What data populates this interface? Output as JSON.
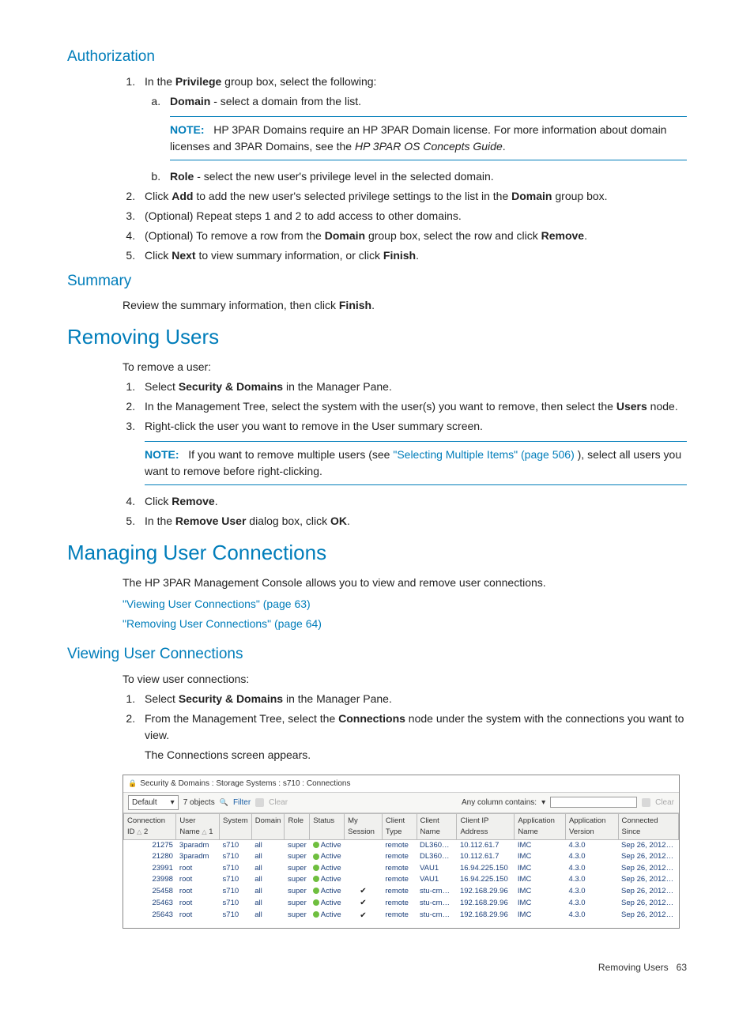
{
  "authorization": {
    "heading": "Authorization",
    "intro": "In the ",
    "intro_bold": "Privilege",
    "intro_after": " group box, select the following:",
    "domain_label": "Domain",
    "domain_text": " - select a domain from the list.",
    "note_label": "NOTE:",
    "note_text": "HP 3PAR Domains require an HP 3PAR Domain license. For more information about domain licenses and 3PAR Domains, see the ",
    "note_italic": "HP 3PAR OS Concepts Guide",
    "role_label": "Role",
    "role_text": " - select the new user's privilege level in the selected domain.",
    "step2_a": "Click ",
    "step2_b": "Add",
    "step2_c": " to add the new user's selected privilege settings to the list in the ",
    "step2_d": "Domain",
    "step2_e": " group box.",
    "step3": "(Optional) Repeat steps 1 and 2 to add access to other domains.",
    "step4_a": "(Optional) To remove a row from the ",
    "step4_b": "Domain",
    "step4_c": " group box, select the row and click ",
    "step4_d": "Remove",
    "step4_e": ".",
    "step5_a": "Click ",
    "step5_b": "Next",
    "step5_c": " to view summary information, or click ",
    "step5_d": "Finish",
    "step5_e": "."
  },
  "summary": {
    "heading": "Summary",
    "text_a": "Review the summary information, then click ",
    "text_b": "Finish",
    "text_c": "."
  },
  "removing": {
    "heading": "Removing Users",
    "intro": "To remove a user:",
    "s1a": "Select ",
    "s1b": "Security & Domains",
    "s1c": " in the Manager Pane.",
    "s2a": "In the Management Tree, select the system with the user(s) you want to remove, then select the ",
    "s2b": "Users",
    "s2c": " node.",
    "s3": "Right-click the user you want to remove in the User summary screen.",
    "note_label": "NOTE:",
    "note_a": "If you want to remove multiple users (see ",
    "note_link": "\"Selecting Multiple Items\" (page 506)",
    "note_b": " ), select all users you want to remove before right-clicking.",
    "s4a": "Click ",
    "s4b": "Remove",
    "s4c": ".",
    "s5a": "In the ",
    "s5b": "Remove User",
    "s5c": " dialog box, click ",
    "s5d": "OK",
    "s5e": "."
  },
  "managing": {
    "heading": "Managing User Connections",
    "intro": "The HP 3PAR Management Console allows you to view and remove user connections.",
    "link1": "\"Viewing User Connections\" (page 63)",
    "link2": "\"Removing User Connections\" (page 64)"
  },
  "viewing": {
    "heading": "Viewing User Connections",
    "intro": "To view user connections:",
    "s1a": "Select ",
    "s1b": "Security & Domains",
    "s1c": " in the Manager Pane.",
    "s2a": "From the Management Tree, select the ",
    "s2b": "Connections",
    "s2c": " node under the system with the connections you want to view.",
    "after": "The Connections screen appears."
  },
  "screenshot": {
    "title": "Security & Domains : Storage Systems : s710 : Connections",
    "filter_dd": "Default",
    "objects": "7 objects",
    "filter_lbl": "Filter",
    "clear_lbl": "Clear",
    "anycol": "Any column contains:",
    "clear_right": "Clear",
    "cols": {
      "conn": "Connection ID",
      "sort2": "2",
      "user": "User Name",
      "sort1": "1",
      "system": "System",
      "domain": "Domain",
      "role": "Role",
      "status": "Status",
      "mysession": "My Session",
      "clienttype": "Client Type",
      "clientname": "Client Name",
      "clientip": "Client IP Address",
      "appname": "Application Name",
      "appver": "Application Version",
      "connsince": "Connected Since"
    },
    "rows": [
      {
        "id": "21275",
        "user": "3paradm",
        "sys": "s710",
        "dom": "all",
        "role": "super",
        "status": "Active",
        "my": "",
        "ctype": "remote",
        "cname": "DL360…",
        "cip": "10.112.61.7",
        "app": "IMC",
        "ver": "4.3.0",
        "since": "Sep 26, 2012…"
      },
      {
        "id": "21280",
        "user": "3paradm",
        "sys": "s710",
        "dom": "all",
        "role": "super",
        "status": "Active",
        "my": "",
        "ctype": "remote",
        "cname": "DL360…",
        "cip": "10.112.61.7",
        "app": "IMC",
        "ver": "4.3.0",
        "since": "Sep 26, 2012…"
      },
      {
        "id": "23991",
        "user": "root",
        "sys": "s710",
        "dom": "all",
        "role": "super",
        "status": "Active",
        "my": "",
        "ctype": "remote",
        "cname": "VAU1",
        "cip": "16.94.225.150",
        "app": "IMC",
        "ver": "4.3.0",
        "since": "Sep 26, 2012…"
      },
      {
        "id": "23998",
        "user": "root",
        "sys": "s710",
        "dom": "all",
        "role": "super",
        "status": "Active",
        "my": "",
        "ctype": "remote",
        "cname": "VAU1",
        "cip": "16.94.225.150",
        "app": "IMC",
        "ver": "4.3.0",
        "since": "Sep 26, 2012…"
      },
      {
        "id": "25458",
        "user": "root",
        "sys": "s710",
        "dom": "all",
        "role": "super",
        "status": "Active",
        "my": "y",
        "ctype": "remote",
        "cname": "stu-cm…",
        "cip": "192.168.29.96",
        "app": "IMC",
        "ver": "4.3.0",
        "since": "Sep 26, 2012…"
      },
      {
        "id": "25463",
        "user": "root",
        "sys": "s710",
        "dom": "all",
        "role": "super",
        "status": "Active",
        "my": "y",
        "ctype": "remote",
        "cname": "stu-cm…",
        "cip": "192.168.29.96",
        "app": "IMC",
        "ver": "4.3.0",
        "since": "Sep 26, 2012…"
      },
      {
        "id": "25643",
        "user": "root",
        "sys": "s710",
        "dom": "all",
        "role": "super",
        "status": "Active",
        "my": "y",
        "ctype": "remote",
        "cname": "stu-cm…",
        "cip": "192.168.29.96",
        "app": "IMC",
        "ver": "4.3.0",
        "since": "Sep 26, 2012…"
      }
    ]
  },
  "footer": {
    "label": "Removing Users",
    "page": "63"
  }
}
